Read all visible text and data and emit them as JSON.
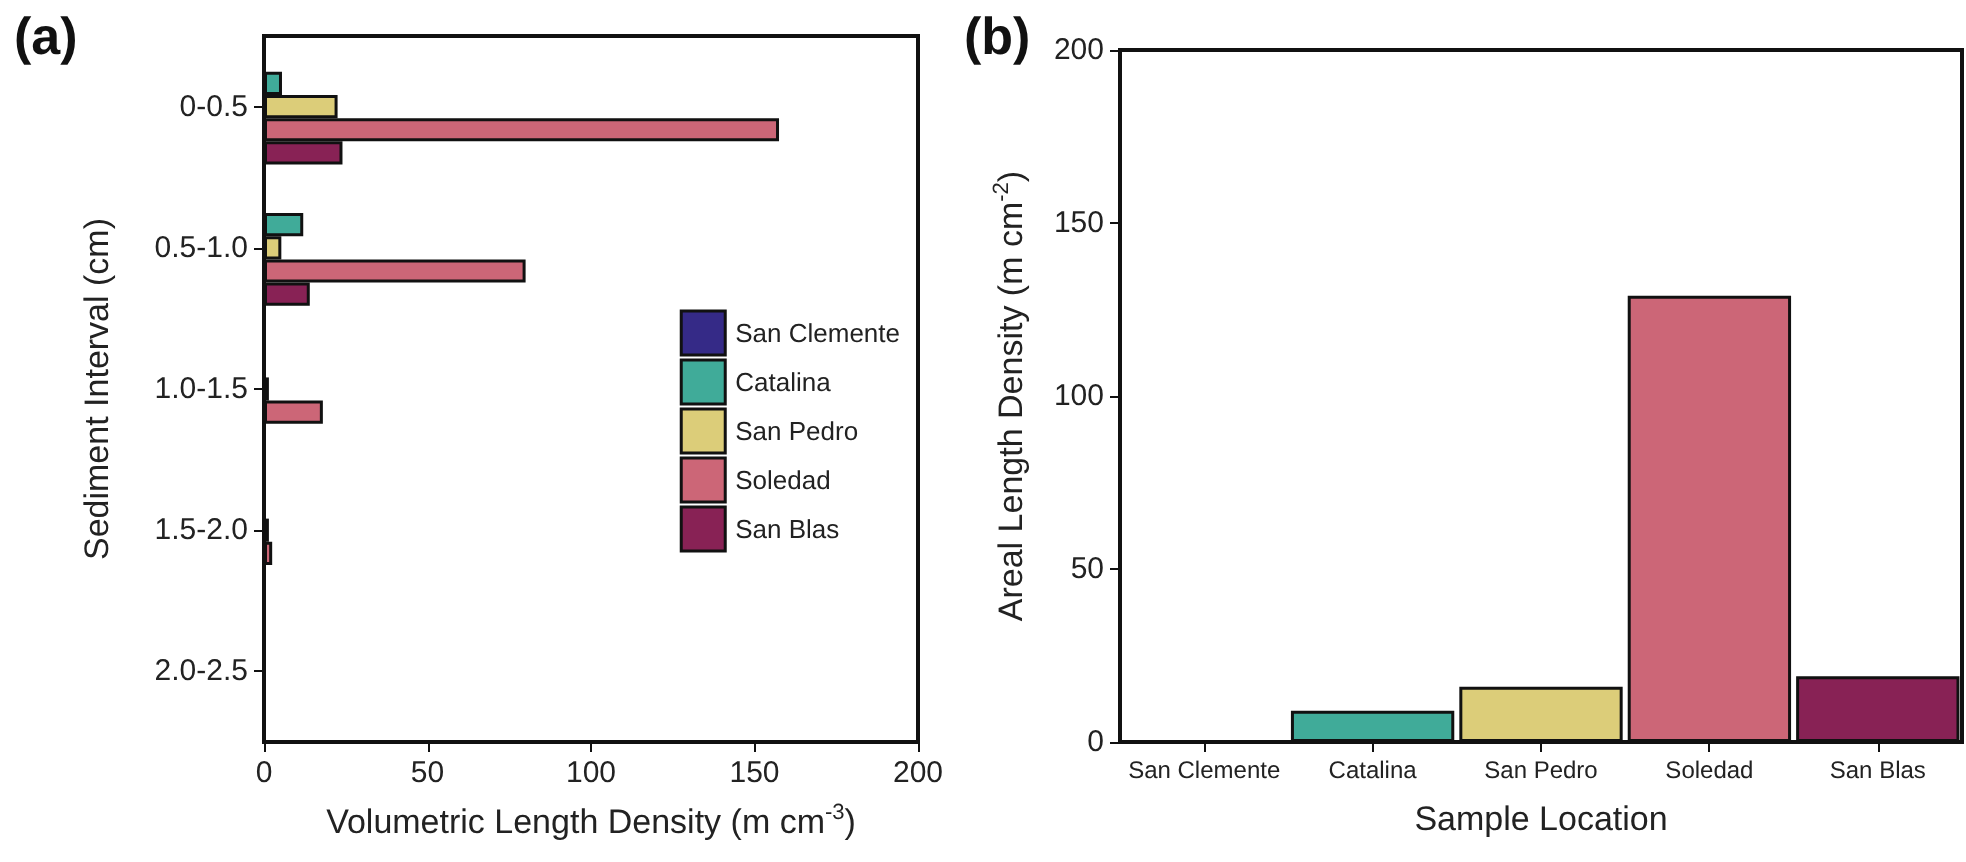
{
  "chart_data": [
    {
      "type": "bar",
      "title": "(a)",
      "orientation": "horizontal",
      "categories": [
        "0-0.5",
        "0.5-1.0",
        "1.0-1.5",
        "1.5-2.0",
        "2.0-2.5"
      ],
      "xlabel": "Volumetric Length Density (m cm$^{-3}$)",
      "ylabel": "Sediment Interval (cm)",
      "xlim": [
        0,
        200
      ],
      "xticks": [
        0,
        50,
        100,
        150,
        200
      ],
      "legend": "right",
      "grid": false,
      "series": [
        {
          "name": "San Clemente",
          "color": "#352a87",
          "values": [
            0,
            0,
            0,
            0,
            0
          ]
        },
        {
          "name": "Catalina",
          "color": "#40ab99",
          "values": [
            5.5,
            12,
            0,
            0,
            0
          ]
        },
        {
          "name": "San Pedro",
          "color": "#dccd79",
          "values": [
            22.5,
            5.3,
            1.5,
            1.5,
            0
          ]
        },
        {
          "name": "Soledad",
          "color": "#cc6677",
          "values": [
            157.5,
            80,
            18,
            2.5,
            0
          ]
        },
        {
          "name": "San Blas",
          "color": "#882255",
          "values": [
            24,
            14,
            0,
            0,
            0
          ]
        }
      ]
    },
    {
      "type": "bar",
      "title": "(b)",
      "categories": [
        "San Clemente",
        "Catalina",
        "San Pedro",
        "Soledad",
        "San Blas"
      ],
      "xlabel": "Sample Location",
      "ylabel": "Areal Length Density (m cm$^{-2}$)",
      "ylim": [
        0,
        200
      ],
      "yticks": [
        0,
        50,
        100,
        150,
        200
      ],
      "grid": false,
      "values": [
        0,
        9,
        16,
        129,
        19
      ],
      "colors": [
        "#352a87",
        "#40ab99",
        "#dccd79",
        "#cc6677",
        "#882255"
      ]
    }
  ]
}
